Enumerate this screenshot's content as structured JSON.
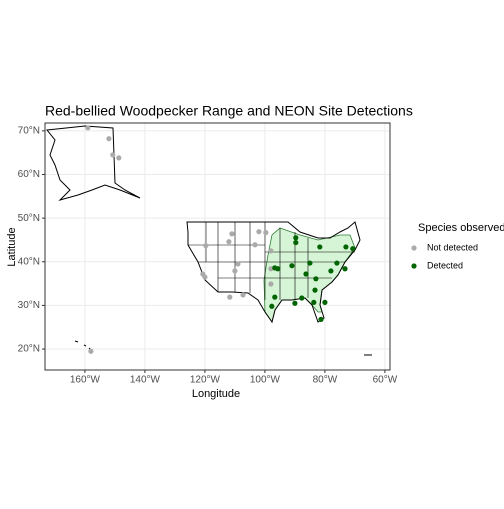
{
  "chart_data": {
    "type": "scatter",
    "title": "Red-bellied Woodpecker Range and NEON Site Detections",
    "x_label": "Longitude",
    "y_label": "Latitude",
    "legend_title": "Species observed",
    "xlim": [
      -173.3,
      -58.3
    ],
    "ylim": [
      15.2,
      71.8
    ],
    "xticks": [
      {
        "value": -160,
        "label": "160°W"
      },
      {
        "value": -140,
        "label": "140°W"
      },
      {
        "value": -120,
        "label": "120°W"
      },
      {
        "value": -100,
        "label": "100°W"
      },
      {
        "value": -80,
        "label": "80°W"
      },
      {
        "value": -60,
        "label": "60°W"
      }
    ],
    "yticks": [
      {
        "value": 20,
        "label": "20°N"
      },
      {
        "value": 30,
        "label": "30°N"
      },
      {
        "value": 40,
        "label": "40°N"
      },
      {
        "value": 50,
        "label": "50°N"
      },
      {
        "value": 60,
        "label": "60°N"
      },
      {
        "value": 70,
        "label": "70°N"
      }
    ],
    "grid": true,
    "series": [
      {
        "name": "Not detected",
        "color": "#aaaaaa",
        "x": [
          -159,
          -152,
          -150.7,
          -148.7,
          -158,
          -111,
          -102,
          -99.7,
          -112,
          -103.3,
          -119.7,
          -109,
          -110,
          -120.7,
          -120,
          -111.7,
          -107.3,
          -98,
          -98,
          -98
        ],
        "y": [
          70.7,
          68.2,
          64.5,
          63.8,
          19.5,
          46.4,
          46.9,
          46.7,
          44.6,
          43.9,
          43.7,
          39.5,
          37.9,
          37.2,
          36.5,
          31.9,
          32.4,
          38.4,
          42.5,
          34.9
        ]
      },
      {
        "name": "Detected",
        "color": "#006400",
        "x": [
          -96.7,
          -95.7,
          -89.7,
          -89.7,
          -91,
          -81.7,
          -73,
          -70.7,
          -73.3,
          -76,
          -78,
          -83,
          -86.3,
          -87.7,
          -83.7,
          -83.3,
          -80,
          -81.3,
          -90,
          -96.7,
          -97.7,
          -85
        ],
        "y": [
          38.6,
          38.4,
          45.5,
          44.4,
          39.1,
          43.4,
          43.4,
          43,
          38.4,
          39.7,
          37.9,
          36.1,
          37.2,
          31.7,
          30.7,
          33.5,
          30.7,
          26.8,
          30.5,
          31.9,
          29.8,
          39.7
        ]
      }
    ]
  }
}
